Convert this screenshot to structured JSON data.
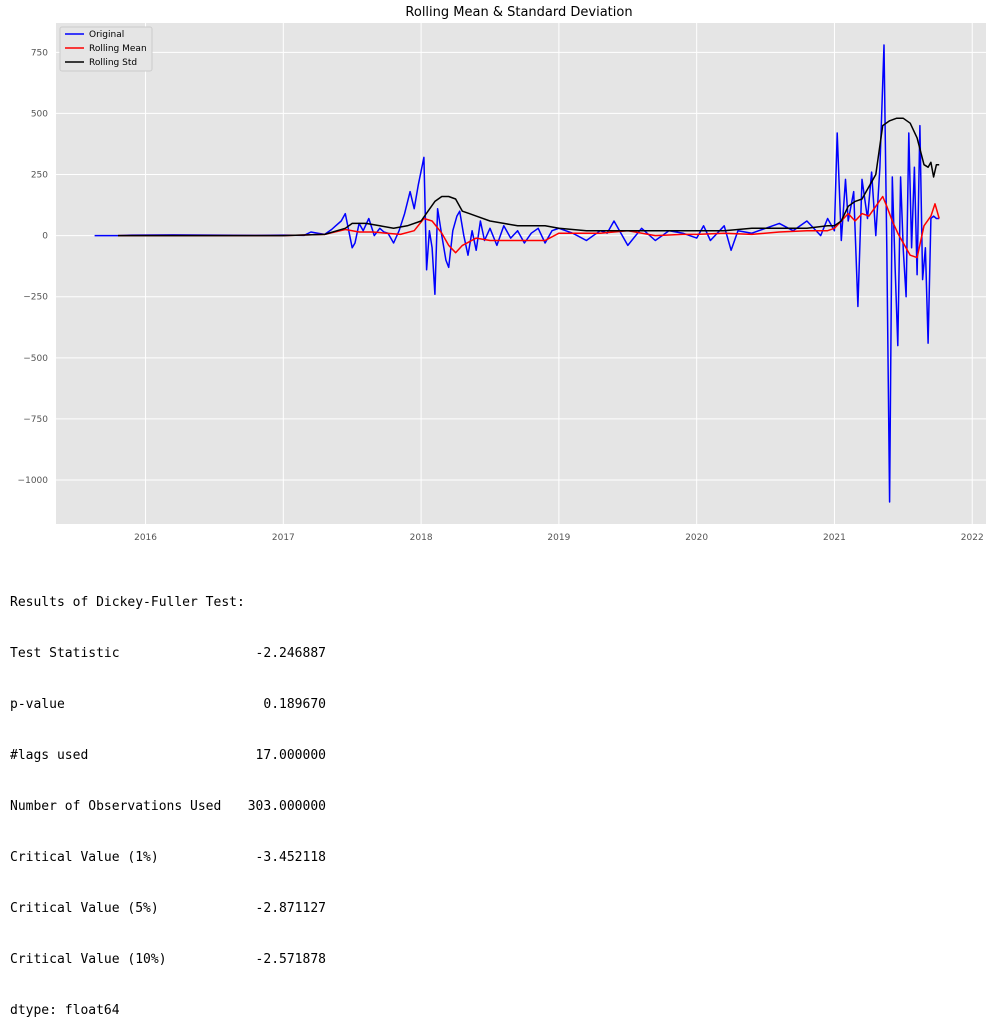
{
  "chart_data": {
    "type": "line",
    "title": "Rolling Mean & Standard Deviation",
    "xlabel": "",
    "ylabel": "",
    "xlim": [
      2015.35,
      2022.1
    ],
    "ylim": [
      -1180,
      870
    ],
    "x_ticks": [
      "2016",
      "2017",
      "2018",
      "2019",
      "2020",
      "2021",
      "2022"
    ],
    "y_ticks": [
      "750",
      "500",
      "250",
      "0",
      "−250",
      "−500",
      "−750",
      "−1000"
    ],
    "grid": true,
    "legend_position": "top-left",
    "colors": {
      "Original": "#0000ff",
      "Rolling Mean": "#ff0000",
      "Rolling Std": "#000000"
    },
    "series": [
      {
        "name": "Original",
        "x": [
          2015.63,
          2015.8,
          2015.9,
          2016.2,
          2016.5,
          2016.8,
          2017.0,
          2017.15,
          2017.2,
          2017.25,
          2017.3,
          2017.35,
          2017.38,
          2017.42,
          2017.45,
          2017.5,
          2017.52,
          2017.55,
          2017.58,
          2017.62,
          2017.66,
          2017.7,
          2017.73,
          2017.76,
          2017.8,
          2017.84,
          2017.88,
          2017.92,
          2017.95,
          2017.98,
          2018.02,
          2018.04,
          2018.06,
          2018.08,
          2018.1,
          2018.12,
          2018.15,
          2018.18,
          2018.2,
          2018.23,
          2018.26,
          2018.28,
          2018.31,
          2018.34,
          2018.37,
          2018.4,
          2018.43,
          2018.46,
          2018.5,
          2018.55,
          2018.6,
          2018.65,
          2018.7,
          2018.75,
          2018.8,
          2018.85,
          2018.9,
          2018.95,
          2019.0,
          2019.1,
          2019.2,
          2019.3,
          2019.35,
          2019.4,
          2019.5,
          2019.6,
          2019.7,
          2019.8,
          2019.9,
          2020.0,
          2020.05,
          2020.1,
          2020.2,
          2020.25,
          2020.3,
          2020.4,
          2020.5,
          2020.6,
          2020.7,
          2020.8,
          2020.9,
          2020.95,
          2021.0,
          2021.02,
          2021.05,
          2021.08,
          2021.1,
          2021.14,
          2021.17,
          2021.2,
          2021.24,
          2021.27,
          2021.3,
          2021.33,
          2021.36,
          2021.38,
          2021.4,
          2021.42,
          2021.44,
          2021.46,
          2021.48,
          2021.5,
          2021.52,
          2021.54,
          2021.56,
          2021.58,
          2021.6,
          2021.62,
          2021.64,
          2021.66,
          2021.68,
          2021.7,
          2021.72,
          2021.74,
          2021.76
        ],
        "y": [
          0,
          0,
          2,
          3,
          2,
          1,
          2,
          1,
          15,
          10,
          5,
          25,
          40,
          60,
          90,
          -50,
          -30,
          50,
          20,
          70,
          0,
          30,
          15,
          10,
          -30,
          20,
          90,
          180,
          110,
          210,
          320,
          -140,
          20,
          -50,
          -240,
          110,
          0,
          -100,
          -130,
          20,
          80,
          100,
          0,
          -80,
          20,
          -60,
          60,
          -20,
          30,
          -40,
          40,
          -10,
          20,
          -30,
          10,
          30,
          -30,
          20,
          30,
          10,
          -20,
          20,
          10,
          60,
          -40,
          30,
          -20,
          20,
          10,
          -10,
          40,
          -20,
          40,
          -60,
          20,
          10,
          30,
          50,
          20,
          60,
          0,
          70,
          20,
          420,
          -20,
          230,
          60,
          180,
          -290,
          230,
          70,
          260,
          0,
          280,
          780,
          -50,
          -1090,
          240,
          -130,
          -450,
          240,
          -60,
          -250,
          420,
          -50,
          280,
          -160,
          450,
          -180,
          -50,
          -440,
          70,
          80,
          70,
          70
        ]
      },
      {
        "name": "Rolling Mean",
        "x": [
          2015.8,
          2016.2,
          2016.6,
          2017.0,
          2017.3,
          2017.45,
          2017.55,
          2017.65,
          2017.75,
          2017.85,
          2017.95,
          2018.02,
          2018.08,
          2018.15,
          2018.2,
          2018.25,
          2018.3,
          2018.4,
          2018.5,
          2018.6,
          2018.75,
          2018.9,
          2019.0,
          2019.1,
          2019.3,
          2019.5,
          2019.7,
          2019.9,
          2020.0,
          2020.2,
          2020.4,
          2020.6,
          2020.8,
          2020.95,
          2021.0,
          2021.05,
          2021.1,
          2021.15,
          2021.2,
          2021.25,
          2021.3,
          2021.35,
          2021.38,
          2021.42,
          2021.46,
          2021.5,
          2021.55,
          2021.6,
          2021.65,
          2021.7,
          2021.73,
          2021.76
        ],
        "y": [
          0,
          0,
          0,
          0,
          5,
          25,
          15,
          15,
          10,
          5,
          20,
          70,
          60,
          10,
          -40,
          -70,
          -40,
          -10,
          -20,
          -20,
          -20,
          -20,
          10,
          10,
          10,
          20,
          0,
          5,
          5,
          10,
          5,
          15,
          20,
          20,
          30,
          60,
          90,
          60,
          90,
          80,
          120,
          160,
          120,
          60,
          10,
          -30,
          -80,
          -90,
          40,
          80,
          130,
          70
        ]
      },
      {
        "name": "Rolling Std",
        "x": [
          2015.8,
          2016.2,
          2016.6,
          2017.0,
          2017.3,
          2017.45,
          2017.5,
          2017.6,
          2017.7,
          2017.8,
          2017.9,
          2018.0,
          2018.05,
          2018.1,
          2018.15,
          2018.2,
          2018.25,
          2018.3,
          2018.35,
          2018.4,
          2018.5,
          2018.6,
          2018.7,
          2018.8,
          2018.9,
          2019.0,
          2019.2,
          2019.4,
          2019.6,
          2019.8,
          2020.0,
          2020.2,
          2020.4,
          2020.6,
          2020.8,
          2020.95,
          2021.0,
          2021.05,
          2021.1,
          2021.15,
          2021.2,
          2021.25,
          2021.3,
          2021.35,
          2021.4,
          2021.45,
          2021.5,
          2021.55,
          2021.6,
          2021.65,
          2021.68,
          2021.7,
          2021.72,
          2021.74,
          2021.76
        ],
        "y": [
          0,
          0,
          0,
          0,
          5,
          30,
          50,
          50,
          40,
          30,
          40,
          60,
          100,
          140,
          160,
          160,
          150,
          100,
          90,
          80,
          60,
          50,
          40,
          40,
          40,
          30,
          20,
          20,
          20,
          20,
          20,
          20,
          30,
          30,
          30,
          40,
          40,
          60,
          120,
          140,
          150,
          200,
          250,
          450,
          470,
          480,
          480,
          460,
          400,
          290,
          280,
          300,
          240,
          290,
          290
        ]
      }
    ]
  },
  "output": {
    "heading": "Results of Dickey-Fuller Test:",
    "rows": [
      {
        "label": "Test Statistic",
        "value": "-2.246887"
      },
      {
        "label": "p-value",
        "value": "0.189670"
      },
      {
        "label": "#lags used",
        "value": "17.000000"
      },
      {
        "label": "Number of Observations Used",
        "value": "303.000000"
      },
      {
        "label": "Critical Value (1%)",
        "value": "-3.452118"
      },
      {
        "label": "Critical Value (5%)",
        "value": "-2.871127"
      },
      {
        "label": "Critical Value (10%)",
        "value": "-2.571878"
      }
    ],
    "dtype": "dtype: float64"
  }
}
